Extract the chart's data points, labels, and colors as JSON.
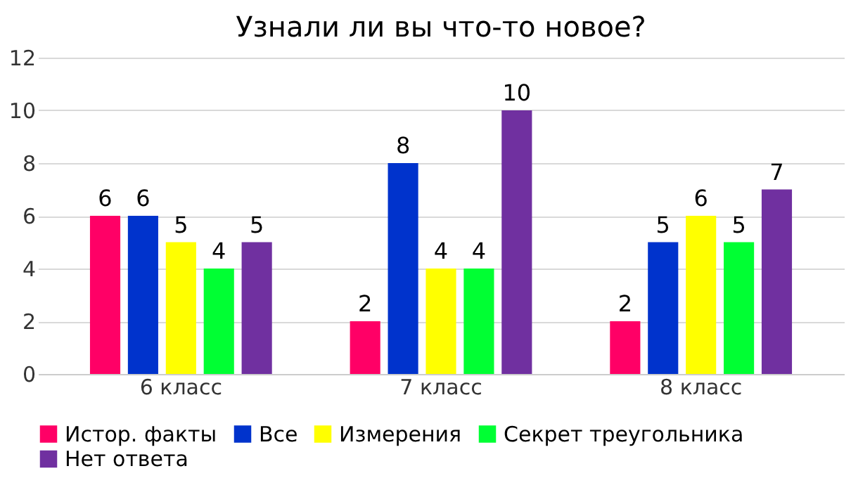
{
  "chart_data": {
    "type": "bar",
    "title": "Узнали ли вы что-то новое?",
    "categories": [
      "6 класс",
      "7 класс",
      "8 класс"
    ],
    "series": [
      {
        "name": "Истор. факты",
        "color": "#ff0066",
        "values": [
          6,
          2,
          2
        ]
      },
      {
        "name": "Все",
        "color": "#0033cc",
        "values": [
          6,
          8,
          5
        ]
      },
      {
        "name": "Измерения",
        "color": "#ffff00",
        "values": [
          5,
          4,
          6
        ]
      },
      {
        "name": "Секрет треугольника",
        "color": "#00ff33",
        "values": [
          4,
          4,
          5
        ]
      },
      {
        "name": "Нет ответа",
        "color": "#7030a0",
        "values": [
          5,
          10,
          7
        ]
      }
    ],
    "ylim": [
      0,
      12
    ],
    "yticks": [
      0,
      2,
      4,
      6,
      8,
      10,
      12
    ],
    "grid": "y",
    "legend": "bottom",
    "data_labels": true
  }
}
